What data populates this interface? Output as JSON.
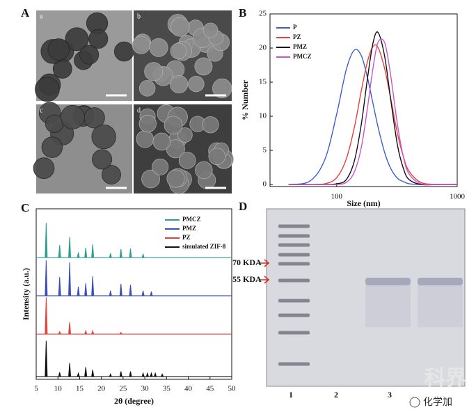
{
  "panel_a": {
    "label": "A",
    "images": [
      "a",
      "b",
      "c",
      "d"
    ]
  },
  "chart_data": [
    {
      "panel_label": "B",
      "type": "line",
      "x_scale": "log",
      "x_label": "Size (nm)",
      "y_label": "% Number",
      "x": [
        40,
        60,
        80,
        100,
        120,
        140,
        160,
        180,
        200,
        220,
        250,
        280,
        320,
        360,
        400,
        500,
        700,
        1000
      ],
      "xlim": [
        28,
        1000
      ],
      "xticks": [
        100,
        1000
      ],
      "ylim": [
        -0.3,
        25
      ],
      "yticks": [
        0,
        5,
        10,
        15,
        20,
        25
      ],
      "series": [
        {
          "name": "P",
          "color": "#3a5fcd",
          "values": [
            0,
            0.5,
            3.7,
            10.3,
            16.8,
            19.7,
            18.9,
            15.7,
            11.9,
            8.5,
            4.7,
            2.4,
            0.9,
            0.4,
            0.1,
            0,
            0,
            0
          ]
        },
        {
          "name": "PZ",
          "color": "#e8403a",
          "values": [
            0,
            0,
            0.1,
            1.0,
            3.7,
            8.3,
            13.7,
            18.0,
            20.2,
            20.1,
            17.0,
            12.7,
            7.4,
            3.9,
            1.9,
            0.3,
            0,
            0
          ]
        },
        {
          "name": "PMZ",
          "color": "#111111",
          "values": [
            0,
            0,
            0,
            0.1,
            0.7,
            3.4,
            8.8,
            15.5,
            20.7,
            22.3,
            18.8,
            12.6,
            5.7,
            2.2,
            0.7,
            0,
            0,
            0
          ]
        },
        {
          "name": "PMCZ",
          "color": "#cc55cc",
          "values": [
            0,
            0,
            0,
            0,
            0.3,
            1.8,
            5.4,
            11.2,
            17.0,
            20.8,
            20.8,
            16.1,
            8.7,
            3.8,
            1.5,
            0.1,
            0,
            0
          ]
        }
      ]
    },
    {
      "panel_label": "C",
      "type": "stick",
      "x_label": "2θ (degree)",
      "y_label": "Intensity (a.u.)",
      "xlim": [
        5,
        50
      ],
      "xticks": [
        5,
        10,
        15,
        20,
        25,
        30,
        35,
        40,
        45,
        50
      ],
      "ylim": [
        0,
        100
      ],
      "series": [
        {
          "name": "PMCZ",
          "color": "#2e9e8f",
          "offset": 71.4,
          "peaks_x": [
            7.3,
            10.4,
            12.7,
            14.7,
            16.4,
            18.0,
            22.1,
            24.5,
            26.7,
            29.6
          ],
          "heights": [
            20.4,
            7.3,
            12.2,
            3,
            5.7,
            7.7,
            2.5,
            5,
            5.3,
            2
          ]
        },
        {
          "name": "PMZ",
          "color": "#3b4fb5",
          "offset": 49,
          "peaks_x": [
            7.3,
            10.4,
            12.7,
            14.7,
            16.4,
            18.0,
            22.1,
            24.5,
            26.7,
            29.6,
            31.5
          ],
          "heights": [
            20.8,
            11,
            19.6,
            5.3,
            7.3,
            11.4,
            3,
            7,
            6.5,
            3,
            2.5
          ]
        },
        {
          "name": "PZ",
          "color": "#e8403a",
          "offset": 26.5,
          "peaks_x": [
            7.3,
            10.4,
            12.7,
            16.4,
            18.0,
            24.5
          ],
          "heights": [
            21.6,
            1.5,
            7,
            2,
            2,
            1
          ]
        },
        {
          "name": "simulated ZIF-8",
          "color": "#111111",
          "offset": 1.6,
          "peaks_x": [
            7.3,
            10.4,
            12.7,
            14.7,
            16.4,
            18.0,
            22.1,
            24.5,
            26.7,
            29.6,
            30.6,
            31.5,
            32.4,
            34.0
          ],
          "heights": [
            21,
            2.5,
            8,
            2,
            5.5,
            4,
            1.5,
            3,
            3,
            2,
            2,
            2,
            2,
            1.5
          ]
        }
      ]
    }
  ],
  "panel_d": {
    "label": "D",
    "markers": [
      "70 KDA",
      "55 KDA"
    ],
    "lanes": [
      "1",
      "2",
      "3"
    ]
  },
  "watermark": [
    "科界",
    "化学加"
  ]
}
